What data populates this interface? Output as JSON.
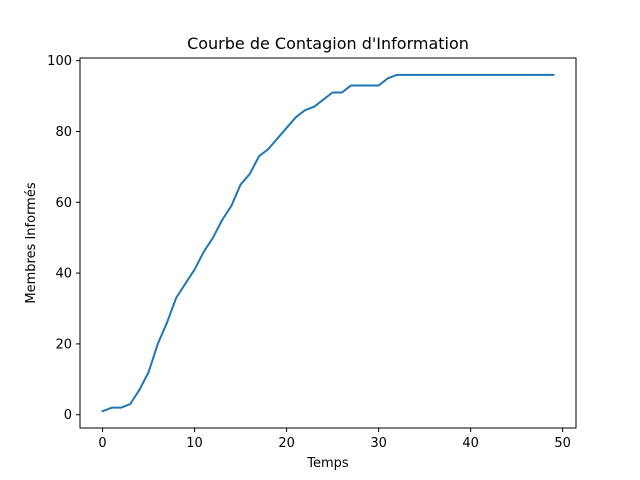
{
  "chart_data": {
    "type": "line",
    "title": "Courbe de Contagion d'Information",
    "xlabel": "Temps",
    "ylabel": "Membres Informés",
    "xlim": [
      -2.45,
      51.45
    ],
    "ylim": [
      -3.75,
      100.75
    ],
    "xticks": [
      0,
      10,
      20,
      30,
      40,
      50
    ],
    "yticks": [
      0,
      20,
      40,
      60,
      80,
      100
    ],
    "grid": false,
    "line_color": "#1f77b4",
    "series": [
      {
        "x": [
          0,
          1,
          2,
          3,
          4,
          5,
          6,
          7,
          8,
          9,
          10,
          11,
          12,
          13,
          14,
          15,
          16,
          17,
          18,
          19,
          20,
          21,
          22,
          23,
          24,
          25,
          26,
          27,
          28,
          29,
          30,
          31,
          32,
          33,
          34,
          35,
          36,
          37,
          38,
          39,
          40,
          41,
          42,
          43,
          44,
          45,
          46,
          47,
          48,
          49
        ],
        "values": [
          1,
          2,
          2,
          3,
          7,
          12,
          20,
          26,
          33,
          37,
          41,
          46,
          50,
          55,
          59,
          65,
          68,
          73,
          75,
          78,
          81,
          84,
          86,
          87,
          89,
          91,
          91,
          93,
          93,
          93,
          93,
          95,
          96,
          96,
          96,
          96,
          96,
          96,
          96,
          96,
          96,
          96,
          96,
          96,
          96,
          96,
          96,
          96,
          96,
          96
        ]
      }
    ]
  }
}
